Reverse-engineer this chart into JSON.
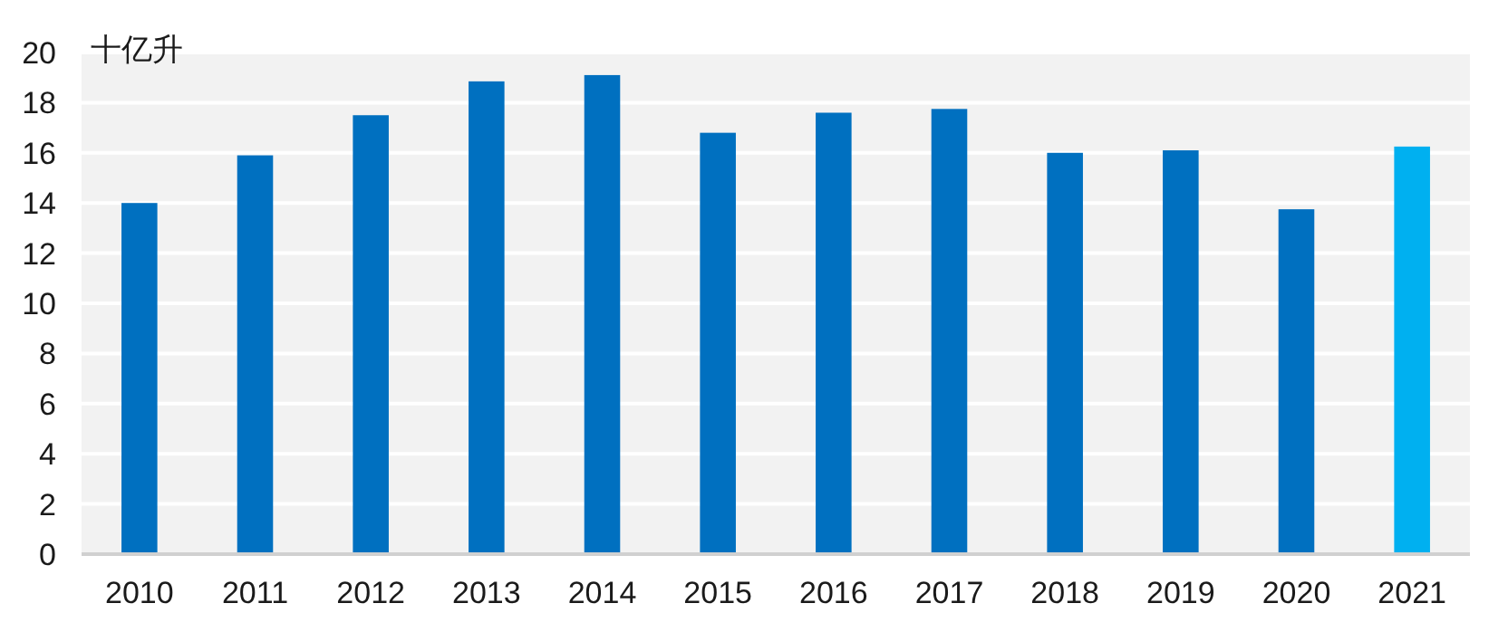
{
  "chart_data": {
    "type": "bar",
    "ylabel": "十亿升",
    "categories": [
      "2010",
      "2011",
      "2012",
      "2013",
      "2014",
      "2015",
      "2016",
      "2017",
      "2018",
      "2019",
      "2020",
      "2021"
    ],
    "values": [
      14.0,
      15.9,
      17.5,
      18.85,
      19.1,
      16.8,
      17.6,
      17.75,
      16.0,
      16.1,
      13.75,
      16.25
    ],
    "colors": [
      "#0070c0",
      "#0070c0",
      "#0070c0",
      "#0070c0",
      "#0070c0",
      "#0070c0",
      "#0070c0",
      "#0070c0",
      "#0070c0",
      "#0070c0",
      "#0070c0",
      "#00b0f0"
    ],
    "ylim": [
      0,
      20
    ],
    "yticks": [
      0,
      2,
      4,
      6,
      8,
      10,
      12,
      14,
      16,
      18,
      20
    ],
    "grid": "y"
  }
}
